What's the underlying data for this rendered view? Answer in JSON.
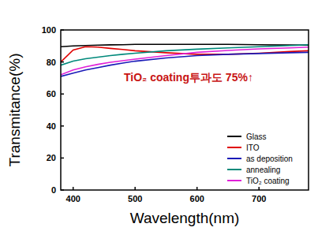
{
  "chart_data": {
    "type": "line",
    "x_label": "Wavelength(nm)",
    "y_label": "Transmitance(%)",
    "annotation": "TiO₂ coating투과도 75%↑",
    "x": [
      380,
      400,
      420,
      440,
      460,
      480,
      500,
      550,
      600,
      650,
      700,
      750,
      780
    ],
    "series": [
      {
        "name": "Glass",
        "color": "#000000",
        "values": [
          89.5,
          90,
          90.3,
          90.5,
          90.7,
          90.8,
          91,
          91,
          91,
          91,
          90.8,
          90.6,
          90.5
        ]
      },
      {
        "name": "ITO",
        "color": "#e00000",
        "values": [
          80,
          87.5,
          89.5,
          89.3,
          88.5,
          87.8,
          87,
          85.8,
          84.8,
          84.8,
          85.5,
          86.5,
          87
        ]
      },
      {
        "name": "as deposition",
        "color": "#1a1ab8",
        "values": [
          71,
          73,
          75,
          76.5,
          78,
          79.3,
          80.5,
          82.5,
          84,
          84.8,
          85.3,
          85.8,
          86
        ]
      },
      {
        "name": "annealing",
        "color": "#00897b",
        "values": [
          78,
          80.5,
          82,
          83,
          84,
          84.8,
          85.5,
          87,
          88,
          88.8,
          89.5,
          90.3,
          90.8
        ]
      },
      {
        "name": "TiO₂ coating",
        "color": "#e020d8",
        "values": [
          72,
          75,
          77,
          78.5,
          79.8,
          80.8,
          81.8,
          84,
          86,
          87.2,
          88.2,
          88.8,
          89.3
        ]
      }
    ],
    "xlim": [
      380,
      780
    ],
    "xticks": [
      400,
      500,
      600,
      700
    ],
    "ylim": [
      0,
      100
    ],
    "yticks": [
      0,
      20,
      40,
      60,
      80,
      100
    ],
    "legend": "lower right",
    "grid": false
  }
}
